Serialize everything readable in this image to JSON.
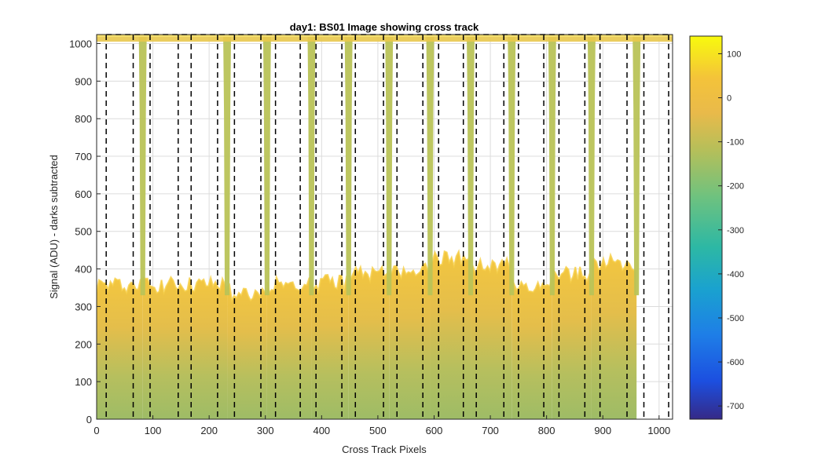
{
  "chart_data": {
    "type": "heatmap",
    "title": "day1: BS01  Image showing cross track",
    "xlabel": "Cross Track Pixels",
    "ylabel": "Signal (ADU) - darks subtracted",
    "xlim": [
      0,
      1024
    ],
    "ylim": [
      0,
      1024
    ],
    "x_ticks": [
      0,
      100,
      200,
      300,
      400,
      500,
      600,
      700,
      800,
      900,
      1000
    ],
    "y_ticks": [
      0,
      100,
      200,
      300,
      400,
      500,
      600,
      700,
      800,
      900,
      1000
    ],
    "grid": true,
    "colorbar": {
      "range": [
        -730,
        140
      ],
      "ticks": [
        100,
        0,
        -100,
        -200,
        -300,
        -400,
        -500,
        -600,
        -700
      ],
      "colormap": "parula"
    },
    "column_boundaries_x": [
      17,
      65,
      95,
      145,
      168,
      215,
      245,
      292,
      318,
      362,
      390,
      436,
      460,
      510,
      534,
      580,
      608,
      652,
      675,
      724,
      750,
      795,
      822,
      868,
      895,
      943,
      973,
      1017
    ],
    "dark_trough_x": [
      82,
      232,
      303,
      382,
      448,
      520,
      593,
      665,
      738,
      810,
      880,
      960
    ],
    "edge_band_y": [
      1005,
      1024
    ],
    "bright_region_top_y": [
      360,
      360,
      340,
      360,
      365,
      390,
      400,
      430,
      410,
      360,
      390,
      420
    ],
    "region_color_high": "#f2c44a",
    "region_color_low": "#a9bd5f",
    "trough_color": "#b9c357"
  }
}
